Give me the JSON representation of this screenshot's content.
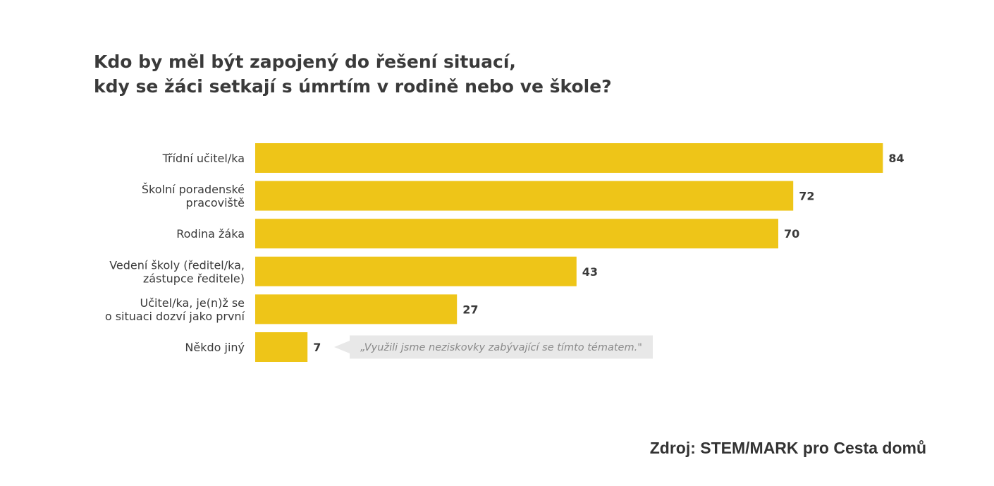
{
  "title": {
    "line1": "Kdo by měl být zapojený do řešení situací,",
    "line2": "kdy se žáci setkají s úmrtím v rodině nebo ve škole?"
  },
  "source": "Zdroj: STEM/MARK pro Cesta domů",
  "colors": {
    "bar": "#eec518",
    "text": "#3a3a3a",
    "callout_bg": "#e8e8e8",
    "callout_text": "#8a8a8a"
  },
  "chart_data": {
    "type": "bar",
    "orientation": "horizontal",
    "categories": [
      [
        "Třídní učitel/ka"
      ],
      [
        "Školní poradenské",
        "pracoviště"
      ],
      [
        "Rodina žáka"
      ],
      [
        "Vedení školy (ředitel/ka,",
        "zástupce ředitele)"
      ],
      [
        "Učitel/ka, je(n)ž se",
        "o situaci dozví jako první"
      ],
      [
        "Někdo jiný"
      ]
    ],
    "values": [
      84,
      72,
      70,
      43,
      27,
      7
    ],
    "annotations": [
      {
        "category_index": 5,
        "text": "„Využili jsme neziskovky zabývající se tímto tématem.\""
      }
    ],
    "title": "Kdo by měl být zapojený do řešení situací, kdy se žáci setkají s úmrtím v rodině nebo ve škole?",
    "xlabel": "",
    "ylabel": "",
    "grid": false,
    "legend": "none"
  }
}
